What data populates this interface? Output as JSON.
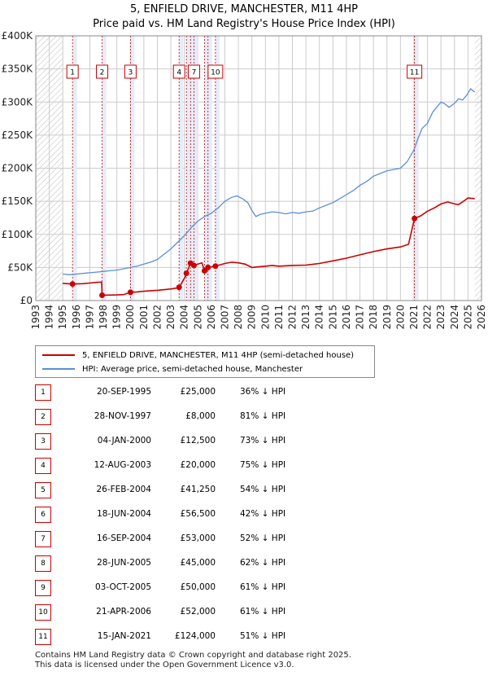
{
  "title": "5, ENFIELD DRIVE, MANCHESTER, M11 4HP",
  "subtitle": "Price paid vs. HM Land Registry's House Price Index (HPI)",
  "colors": {
    "property": "#cc0000",
    "hpi": "#5b8fd4",
    "band": "#e6ecf8",
    "grid": "#cccccc",
    "marker_border": "#cc0000"
  },
  "legend": [
    {
      "label": "5, ENFIELD DRIVE, MANCHESTER, M11 4HP (semi-detached house)",
      "color": "#cc0000"
    },
    {
      "label": "HPI: Average price, semi-detached house, Manchester",
      "color": "#5b8fd4"
    }
  ],
  "chart_data": {
    "type": "line",
    "title": "5, ENFIELD DRIVE, MANCHESTER, M11 4HP",
    "subtitle": "Price paid vs. HM Land Registry's House Price Index (HPI)",
    "xlim": [
      1993,
      2026
    ],
    "ylim": [
      0,
      400000
    ],
    "x_ticks": [
      "1993",
      "1994",
      "1995",
      "1996",
      "1997",
      "1998",
      "1999",
      "2000",
      "2001",
      "2002",
      "2003",
      "2004",
      "2005",
      "2006",
      "2007",
      "2008",
      "2009",
      "2010",
      "2011",
      "2012",
      "2013",
      "2014",
      "2015",
      "2016",
      "2017",
      "2018",
      "2019",
      "2020",
      "2021",
      "2022",
      "2023",
      "2024",
      "2025",
      "2026"
    ],
    "y_ticks": [
      {
        "value": 0,
        "label": "£0"
      },
      {
        "value": 50000,
        "label": "£50K"
      },
      {
        "value": 100000,
        "label": "£100K"
      },
      {
        "value": 150000,
        "label": "£150K"
      },
      {
        "value": 200000,
        "label": "£200K"
      },
      {
        "value": 250000,
        "label": "£250K"
      },
      {
        "value": 300000,
        "label": "£300K"
      },
      {
        "value": 350000,
        "label": "£350K"
      },
      {
        "value": 400000,
        "label": "£400K"
      }
    ],
    "hatched_ranges": [
      [
        1993,
        1995
      ],
      [
        2025.5,
        2026
      ]
    ],
    "series": [
      {
        "name": "HPI: Average price, semi-detached house, Manchester",
        "x": [
          1995.0,
          1995.5,
          1996.0,
          1996.5,
          1997.0,
          1997.5,
          1998.0,
          1998.5,
          1999.0,
          1999.5,
          2000.0,
          2000.5,
          2001.0,
          2001.5,
          2002.0,
          2002.5,
          2003.0,
          2003.5,
          2004.0,
          2004.5,
          2005.0,
          2005.5,
          2006.0,
          2006.5,
          2007.0,
          2007.5,
          2007.9,
          2008.3,
          2008.7,
          2009.0,
          2009.3,
          2009.6,
          2010.0,
          2010.5,
          2011.0,
          2011.5,
          2012.0,
          2012.5,
          2013.0,
          2013.5,
          2014.0,
          2014.5,
          2015.0,
          2015.5,
          2016.0,
          2016.5,
          2017.0,
          2017.5,
          2018.0,
          2018.5,
          2019.0,
          2019.5,
          2020.0,
          2020.5,
          2021.0,
          2021.3,
          2021.6,
          2022.0,
          2022.4,
          2022.8,
          2023.0,
          2023.3,
          2023.6,
          2024.0,
          2024.3,
          2024.6,
          2024.9,
          2025.2,
          2025.5
        ],
        "values": [
          40000,
          39000,
          40000,
          41000,
          42000,
          43000,
          44000,
          45000,
          46000,
          48000,
          50000,
          52000,
          55000,
          58000,
          62000,
          70000,
          78000,
          88000,
          98000,
          110000,
          120000,
          127000,
          132000,
          140000,
          150000,
          156000,
          158000,
          154000,
          148000,
          136000,
          127000,
          130000,
          132000,
          134000,
          133000,
          131000,
          133000,
          132000,
          134000,
          135000,
          140000,
          144000,
          148000,
          154000,
          160000,
          166000,
          174000,
          180000,
          188000,
          192000,
          196000,
          198000,
          200000,
          210000,
          228000,
          245000,
          260000,
          268000,
          285000,
          295000,
          300000,
          297000,
          292000,
          298000,
          305000,
          303000,
          310000,
          320000,
          315000
        ]
      },
      {
        "name": "5, ENFIELD DRIVE, MANCHESTER, M11 4HP (semi-detached house)",
        "x": [
          1995.0,
          1995.72,
          1996.5,
          1997.0,
          1997.5,
          1997.88,
          1997.91,
          1998.5,
          1999.0,
          1999.5,
          2000.01,
          2000.5,
          2001.0,
          2002.0,
          2003.0,
          2003.61,
          2003.62,
          2004.15,
          2004.16,
          2004.46,
          2004.71,
          2005.0,
          2005.3,
          2005.49,
          2005.75,
          2006.3,
          2007.0,
          2007.5,
          2008.0,
          2008.5,
          2009.0,
          2009.5,
          2010.0,
          2010.5,
          2011.0,
          2012.0,
          2013.0,
          2014.0,
          2015.0,
          2016.0,
          2017.0,
          2018.0,
          2019.0,
          2020.0,
          2020.6,
          2021.04,
          2021.5,
          2022.0,
          2022.5,
          2023.0,
          2023.5,
          2024.0,
          2024.3,
          2024.6,
          2025.0,
          2025.5
        ],
        "values": [
          26000,
          25000,
          25500,
          26500,
          27500,
          28000,
          8000,
          8200,
          8500,
          9000,
          12500,
          13000,
          14000,
          15500,
          17500,
          19500,
          20000,
          39000,
          41250,
          56500,
          53000,
          55000,
          57000,
          45000,
          50000,
          52000,
          56000,
          58000,
          57000,
          55000,
          50000,
          51000,
          52000,
          53000,
          52000,
          53000,
          53500,
          56000,
          60000,
          64000,
          69000,
          74000,
          78000,
          81000,
          85000,
          124000,
          128000,
          135000,
          140000,
          146000,
          149000,
          146000,
          145000,
          149000,
          155000,
          154000
        ]
      }
    ],
    "sales": [
      {
        "id": "1",
        "x": 1995.72,
        "value": 25000
      },
      {
        "id": "2",
        "x": 1997.91,
        "value": 8000
      },
      {
        "id": "3",
        "x": 2000.01,
        "value": 12500
      },
      {
        "id": "4",
        "x": 2003.61,
        "value": 20000
      },
      {
        "id": "5",
        "x": 2004.15,
        "value": 41250
      },
      {
        "id": "6",
        "x": 2004.46,
        "value": 56500
      },
      {
        "id": "7",
        "x": 2004.71,
        "value": 53000
      },
      {
        "id": "8",
        "x": 2005.49,
        "value": 45000
      },
      {
        "id": "9",
        "x": 2005.75,
        "value": 50000
      },
      {
        "id": "10",
        "x": 2006.3,
        "value": 52000
      },
      {
        "id": "11",
        "x": 2021.04,
        "value": 124000
      }
    ],
    "marker_labels": [
      {
        "text": "1",
        "x": 1995.72
      },
      {
        "text": "2",
        "x": 1997.91
      },
      {
        "text": "3",
        "x": 2000.01
      },
      {
        "text": "4",
        "x": 2003.61
      },
      {
        "text": "7",
        "x": 2004.71
      },
      {
        "text": "10",
        "x": 2006.3
      },
      {
        "text": "11",
        "x": 2021.04
      }
    ]
  },
  "transactions": [
    {
      "num": "1",
      "date": "20-SEP-1995",
      "price": "£25,000",
      "hpi": "36% ↓ HPI"
    },
    {
      "num": "2",
      "date": "28-NOV-1997",
      "price": "£8,000",
      "hpi": "81% ↓ HPI"
    },
    {
      "num": "3",
      "date": "04-JAN-2000",
      "price": "£12,500",
      "hpi": "73% ↓ HPI"
    },
    {
      "num": "4",
      "date": "12-AUG-2003",
      "price": "£20,000",
      "hpi": "75% ↓ HPI"
    },
    {
      "num": "5",
      "date": "26-FEB-2004",
      "price": "£41,250",
      "hpi": "54% ↓ HPI"
    },
    {
      "num": "6",
      "date": "18-JUN-2004",
      "price": "£56,500",
      "hpi": "42% ↓ HPI"
    },
    {
      "num": "7",
      "date": "16-SEP-2004",
      "price": "£53,000",
      "hpi": "52% ↓ HPI"
    },
    {
      "num": "8",
      "date": "28-JUN-2005",
      "price": "£45,000",
      "hpi": "62% ↓ HPI"
    },
    {
      "num": "9",
      "date": "03-OCT-2005",
      "price": "£50,000",
      "hpi": "61% ↓ HPI"
    },
    {
      "num": "10",
      "date": "21-APR-2006",
      "price": "£52,000",
      "hpi": "61% ↓ HPI"
    },
    {
      "num": "11",
      "date": "15-JAN-2021",
      "price": "£124,000",
      "hpi": "51% ↓ HPI"
    }
  ],
  "footer": {
    "line1": "Contains HM Land Registry data © Crown copyright and database right 2025.",
    "line2": "This data is licensed under the Open Government Licence v3.0."
  }
}
